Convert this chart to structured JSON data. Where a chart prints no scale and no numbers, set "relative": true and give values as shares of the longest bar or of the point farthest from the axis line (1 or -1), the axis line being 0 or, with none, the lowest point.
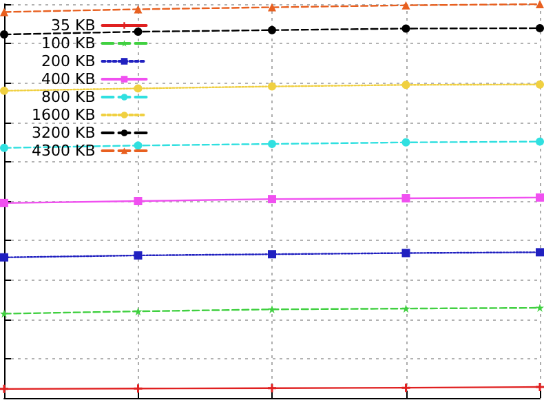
{
  "chart_data": {
    "type": "line",
    "relative": true,
    "grid": true,
    "legend": "top left",
    "categories": [
      null,
      null,
      null,
      null,
      null
    ],
    "series": [
      {
        "name": "35 KB",
        "color": "#e02020",
        "marker": "cross",
        "line_style": "solid",
        "values": [
          0.023,
          0.024,
          0.025,
          0.026,
          0.028
        ]
      },
      {
        "name": "100 KB",
        "color": "#40d040",
        "marker": "star",
        "line_style": "dashed",
        "values": [
          0.214,
          0.22,
          0.225,
          0.227,
          0.229
        ]
      },
      {
        "name": "200 KB",
        "color": "#2020c0",
        "marker": "square",
        "line_style": "dotted",
        "values": [
          0.357,
          0.362,
          0.365,
          0.368,
          0.37
        ]
      },
      {
        "name": "400 KB",
        "color": "#f050f0",
        "marker": "square",
        "line_style": "solid",
        "values": [
          0.495,
          0.5,
          0.505,
          0.507,
          0.509
        ]
      },
      {
        "name": "800 KB",
        "color": "#30e0e0",
        "marker": "circle",
        "line_style": "dashed",
        "values": [
          0.635,
          0.641,
          0.645,
          0.649,
          0.651
        ]
      },
      {
        "name": "1600 KB",
        "color": "#f0d040",
        "marker": "circle",
        "line_style": "dotted",
        "values": [
          0.78,
          0.786,
          0.791,
          0.795,
          0.796
        ]
      },
      {
        "name": "3200 KB",
        "color": "#000000",
        "marker": "circle",
        "line_style": "dashed",
        "values": [
          0.923,
          0.93,
          0.934,
          0.938,
          0.939
        ]
      },
      {
        "name": "4300 KB",
        "color": "#e86020",
        "marker": "triangle",
        "line_style": "dashed",
        "values": [
          0.98,
          0.987,
          0.992,
          0.997,
          1
        ]
      }
    ]
  }
}
